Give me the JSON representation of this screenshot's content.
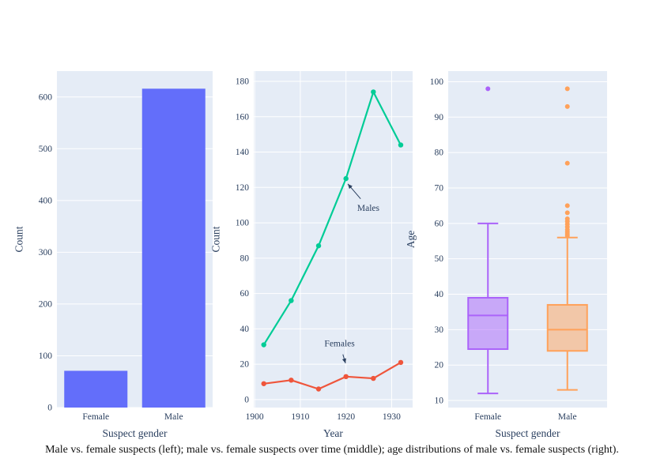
{
  "caption": "Male vs. female suspects (left); male vs. female suspects over time (middle); age distributions of male vs. female suspects (right).",
  "colors": {
    "plot_background": "#e5ecf6",
    "gridline": "#ffffff",
    "text": "#2a3f5f",
    "bar_blue": "#636efa",
    "males_green": "#00cc96",
    "females_red": "#ef553b",
    "female_purple": "#ab63fa",
    "male_orange": "#ffa15a"
  },
  "chart_data": [
    {
      "type": "bar",
      "title": "",
      "xlabel": "Suspect gender",
      "ylabel": "Count",
      "categories": [
        "Female",
        "Male"
      ],
      "values": [
        71,
        616
      ],
      "ylim": [
        0,
        650
      ],
      "yticks": [
        0,
        100,
        200,
        300,
        400,
        500,
        600
      ],
      "grid": true,
      "color": "bar_blue"
    },
    {
      "type": "line",
      "title": "",
      "xlabel": "Year",
      "ylabel": "Count",
      "x": [
        1902,
        1908,
        1914,
        1920,
        1926,
        1932
      ],
      "series": [
        {
          "name": "Males",
          "color": "males_green",
          "values": [
            31,
            56,
            87,
            125,
            174,
            144
          ]
        },
        {
          "name": "Females",
          "color": "females_red",
          "values": [
            9,
            11,
            6,
            13,
            12,
            21
          ]
        }
      ],
      "xlim": [
        1899.8,
        1934.6
      ],
      "ylim": [
        -4.5,
        185.8
      ],
      "xticks": [
        1900,
        1910,
        1920,
        1930
      ],
      "yticks": [
        0,
        20,
        40,
        60,
        80,
        100,
        120,
        140,
        160,
        180
      ],
      "grid": true,
      "annotations": [
        {
          "text": "Males",
          "text_x": 1924.9,
          "text_y": 108.5,
          "tip_x": 1920.4,
          "tip_y": 122
        },
        {
          "text": "Females",
          "text_x": 1918.6,
          "text_y": 32,
          "tip_x": 1919.9,
          "tip_y": 20.5
        }
      ]
    },
    {
      "type": "box",
      "title": "",
      "xlabel": "Suspect gender",
      "ylabel": "Age",
      "categories": [
        "Female",
        "Male"
      ],
      "stats": [
        {
          "label": "Female",
          "color": "female_purple",
          "low": 12,
          "q1": 24.5,
          "median": 34,
          "q3": 39,
          "high": 60,
          "outliers": [
            98
          ]
        },
        {
          "label": "Male",
          "color": "male_orange",
          "low": 13,
          "q1": 24,
          "median": 30,
          "q3": 37,
          "high": 56,
          "outliers": [
            56.5,
            57,
            57.6,
            58.2,
            59,
            59.8,
            60.6,
            61.3,
            63,
            65,
            77,
            93,
            98
          ]
        }
      ],
      "ylim": [
        8,
        103
      ],
      "yticks": [
        10,
        20,
        30,
        40,
        50,
        60,
        70,
        80,
        90,
        100
      ],
      "grid": true
    }
  ]
}
